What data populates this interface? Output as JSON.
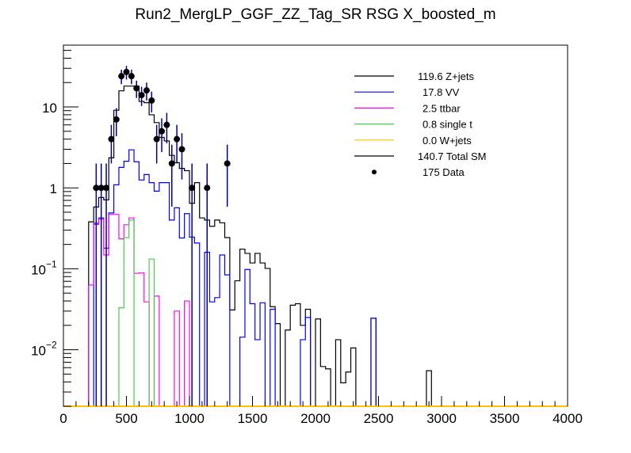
{
  "chart_data": {
    "type": "histogram",
    "title": "Run2_MergLP_GGF_ZZ_Tag_SR RSG  X_boosted_m",
    "xlabel": "",
    "ylabel": "",
    "xlim": [
      0,
      4000
    ],
    "ylim": [
      0.002,
      58
    ],
    "yscale": "log",
    "grid": false,
    "legend_placement": "top-right",
    "x_ticks": [
      "0",
      "500",
      "1000",
      "1500",
      "2000",
      "2500",
      "3000",
      "3500",
      "4000"
    ],
    "y_ticks": [
      {
        "value": 10,
        "base": "10",
        "exp": ""
      },
      {
        "value": 1,
        "base": "1",
        "exp": ""
      },
      {
        "value": 0.1,
        "base": "10",
        "exp": "−1"
      },
      {
        "value": 0.01,
        "base": "10",
        "exp": "−2"
      }
    ],
    "bins": {
      "start": 200,
      "width": 40
    },
    "series": [
      {
        "name": "Total SM",
        "color": "#000000",
        "values": [
          0.38,
          0.58,
          0.76,
          0.71,
          2.35,
          9.1,
          15.8,
          18.1,
          18.1,
          18.1,
          11.7,
          11.3,
          8.0,
          6.4,
          4.2,
          3.8,
          2.52,
          2.05,
          1.74,
          1.63,
          0.645,
          1.16,
          0.425,
          0.4,
          0.335,
          0.4,
          0.37,
          0.243,
          0.031,
          0.071,
          0.175,
          0.155,
          0.118,
          0.155,
          0.118,
          0.101,
          0.034,
          0.021,
          0,
          0.0175,
          0.0355,
          0.037,
          0.02,
          0.0316,
          0,
          0.024,
          0.0062,
          0.0058,
          0,
          0.0133,
          0.0039,
          0.0053,
          0.0105,
          0,
          0,
          0,
          0.0245,
          0,
          0,
          0,
          0,
          0,
          0,
          0,
          0,
          0,
          0,
          0.0055
        ]
      },
      {
        "name": "VV",
        "color": "#0000ff",
        "values": [
          0,
          0.366,
          0.425,
          0.18,
          0.49,
          1.09,
          1.79,
          2.13,
          2.95,
          2.1,
          1.25,
          1.46,
          1.16,
          0.91,
          1.16,
          1.16,
          0.4,
          0.567,
          0.24,
          0.48,
          0.246,
          0.208,
          0,
          0.16,
          0.039,
          0.044,
          0.148,
          0.084,
          0,
          0,
          0.0143,
          0.098,
          0.037,
          0.0133,
          0.038,
          0,
          0.0316,
          0,
          0,
          0,
          0,
          0,
          0.0133,
          0.025,
          0,
          0,
          0,
          0,
          0,
          0,
          0,
          0,
          0,
          0,
          0,
          0,
          0.0245
        ]
      },
      {
        "name": "ttbar",
        "color": "#ff00ff",
        "values": [
          0.063,
          0.353,
          0.41,
          0.148,
          0.47,
          0.47,
          0.234,
          0.35,
          0.425,
          0.088,
          0.089,
          0.039,
          0,
          0.046,
          0,
          0,
          0,
          0.03,
          0,
          0.04
        ]
      },
      {
        "name": "single t",
        "color": "#4cc84c",
        "values": [
          0,
          0,
          0,
          0,
          0,
          0,
          0.033,
          0.243,
          0.4,
          0,
          0,
          0,
          0.132
        ]
      },
      {
        "name": "W+jets",
        "color": "#ffc000",
        "values": []
      }
    ],
    "data_points": {
      "name": "Data",
      "x": [
        260,
        300,
        340,
        380,
        420,
        460,
        500,
        540,
        580,
        620,
        660,
        700,
        740,
        780,
        820,
        860,
        900,
        940,
        1020,
        1140,
        1300
      ],
      "y": [
        1,
        1,
        1,
        4,
        7,
        24,
        27,
        24,
        17,
        14,
        16,
        12,
        4,
        5,
        6,
        2,
        4,
        3,
        1,
        1,
        2
      ],
      "marker_color": "#000000",
      "error_color": "#00008b"
    },
    "legend": [
      {
        "label": "119.6 Z+jets",
        "color": "#000000",
        "kind": "line"
      },
      {
        "label": "17.8 VV",
        "color": "#0000ff",
        "kind": "line"
      },
      {
        "label": "2.5 ttbar",
        "color": "#ff00ff",
        "kind": "line"
      },
      {
        "label": "0.8 single t",
        "color": "#4cc84c",
        "kind": "line"
      },
      {
        "label": "0.0 W+jets",
        "color": "#ffc000",
        "kind": "line"
      },
      {
        "label": "140.7 Total SM",
        "color": "#000000",
        "kind": "line"
      },
      {
        "label": "175 Data",
        "color": "#000000",
        "kind": "marker"
      }
    ]
  }
}
